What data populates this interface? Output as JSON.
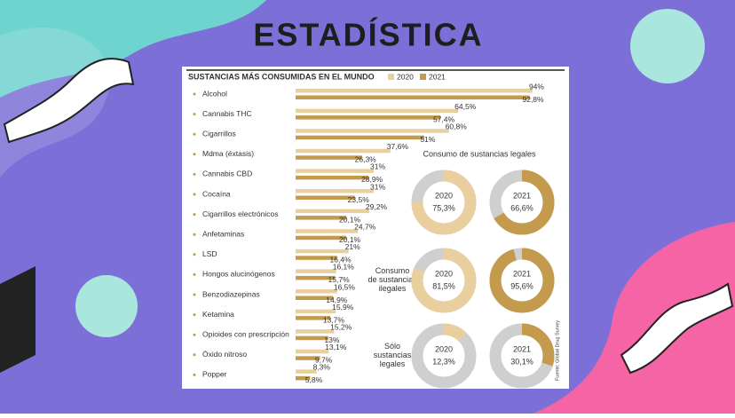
{
  "title": "ESTADÍSTICA",
  "source": "Fuente: Global Drug Survey",
  "chart_data": [
    {
      "type": "bar",
      "title": "SUSTANCIAS MÁS CONSUMIDAS EN EL MUNDO",
      "categories": [
        "Alcohol",
        "Cannabis THC",
        "Cigarrillos",
        "Mdma (éxtasis)",
        "Cannabis CBD",
        "Cocaína",
        "Cigarrillos electrónicos",
        "Anfetaminas",
        "LSD",
        "Hongos alucinógenos",
        "Benzodiazepinas",
        "Ketamina",
        "Opioides con prescripción",
        "Óxido nitroso",
        "Popper"
      ],
      "series": [
        {
          "name": "2020",
          "color": "#e9cf9d",
          "values": [
            94,
            64.5,
            60.8,
            37.6,
            31,
            31,
            29.2,
            24.7,
            21,
            16.1,
            16.5,
            15.9,
            15.2,
            13.1,
            8.3
          ],
          "value_labels": [
            "94%",
            "64,5%",
            "60,8%",
            "37,6%",
            "31%",
            "31%",
            "29,2%",
            "24,7%",
            "21%",
            "16,1%",
            "16,5%",
            "15,9%",
            "15,2%",
            "13,1%",
            "8,3%"
          ]
        },
        {
          "name": "2021",
          "color": "#c49a4c",
          "values": [
            92.8,
            57.4,
            51,
            26.3,
            28.9,
            23.5,
            20.1,
            20.1,
            16.4,
            15.7,
            14.9,
            13.7,
            13,
            9.7,
            5.8
          ],
          "value_labels": [
            "92,8%",
            "57,4%",
            "51%",
            "26,3%",
            "28,9%",
            "23,5%",
            "20,1%",
            "20,1%",
            "16,4%",
            "15,7%",
            "14,9%",
            "13,7%",
            "13%",
            "9,7%",
            "5,8%"
          ]
        }
      ],
      "legend": "top-right"
    },
    {
      "type": "donut",
      "track_color": "#cfcfcf",
      "groups": [
        {
          "label": "Consumo de sustancias legales",
          "series": [
            {
              "name": "2020",
              "color": "#e9cf9d",
              "value": 75.3,
              "value_label": "75,3%"
            },
            {
              "name": "2021",
              "color": "#c49a4c",
              "value": 66.6,
              "value_label": "66,6%"
            }
          ]
        },
        {
          "label": "Consumo de sustancias ilegales",
          "series": [
            {
              "name": "2020",
              "color": "#e9cf9d",
              "value": 81.5,
              "value_label": "81,5%"
            },
            {
              "name": "2021",
              "color": "#c49a4c",
              "value": 95.6,
              "value_label": "95,6%"
            }
          ]
        },
        {
          "label": "Sólo sustancias legales",
          "series": [
            {
              "name": "2020",
              "color": "#e9cf9d",
              "value": 12.3,
              "value_label": "12,3%"
            },
            {
              "name": "2021",
              "color": "#c49a4c",
              "value": 30.1,
              "value_label": "30,1%"
            }
          ]
        }
      ]
    }
  ]
}
